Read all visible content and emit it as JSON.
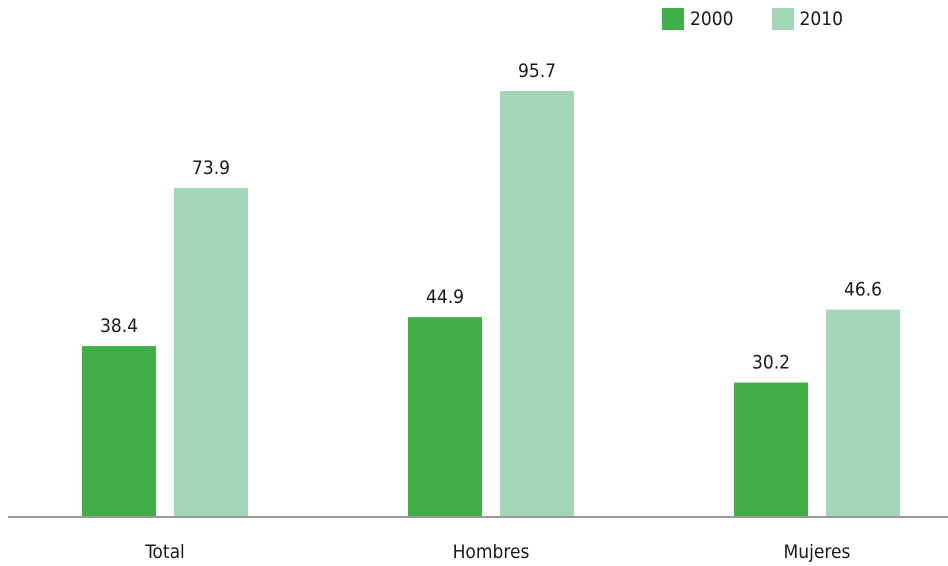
{
  "chart_data": {
    "type": "bar",
    "categories": [
      "Total",
      "Hombres",
      "Mujeres"
    ],
    "series": [
      {
        "name": "2000",
        "values": [
          38.4,
          44.9,
          30.2
        ],
        "color": "#41ae48"
      },
      {
        "name": "2010",
        "values": [
          73.9,
          95.7,
          46.6
        ],
        "color": "#a3d6b8"
      }
    ],
    "value_labels": [
      [
        "38.4",
        "44.9",
        "30.2"
      ],
      [
        "73.9",
        "95.7",
        "46.6"
      ]
    ],
    "title": "",
    "xlabel": "",
    "ylabel": "",
    "ylim": [
      0,
      95.7
    ],
    "grid": false,
    "legend_position": "top-right",
    "axis_color": "#999999"
  }
}
